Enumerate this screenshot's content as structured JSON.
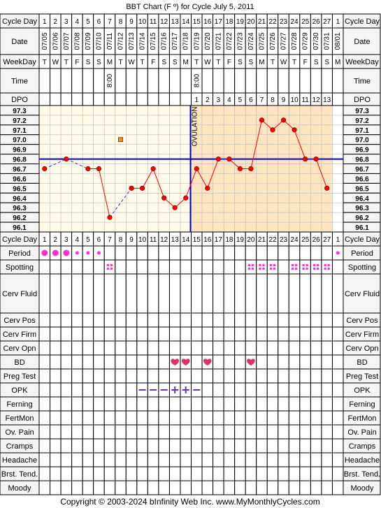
{
  "title": "BBT Chart (F º) for Cycle July 5, 2011",
  "footer": "Copyright © 2003-2024 bInfinity Web Inc.    www.MyMonthlyCycles.com",
  "labels": {
    "cycle_day": "Cycle Day",
    "date": "Date",
    "weekday": "WeekDay",
    "time": "Time",
    "dpo": "DPO",
    "ovulation": "OVULATION"
  },
  "colors": {
    "grid": "#000000",
    "pre_ovulation_bg": "#fffbe8",
    "post_ovulation_bg": "#fde5c0",
    "label_bg": "#f5f5f5",
    "temp_line": "#ff0000",
    "temp_point": "#ff0000",
    "coverline": "#0000cc",
    "ovulation_line": "#0000cc",
    "gap_line": "#3333cc",
    "outlier_point": "#ff8c00",
    "pink": "#ff33cc",
    "heart": "#dd3366",
    "opk": "#6633cc"
  },
  "columns": {
    "cycle_days": [
      "1",
      "2",
      "3",
      "4",
      "5",
      "6",
      "7",
      "8",
      "9",
      "10",
      "11",
      "12",
      "13",
      "14",
      "15",
      "16",
      "17",
      "18",
      "19",
      "20",
      "21",
      "22",
      "23",
      "24",
      "25",
      "26",
      "27",
      "1"
    ],
    "dates": [
      "07/05",
      "07/06",
      "07/07",
      "07/08",
      "07/09",
      "07/10",
      "07/11",
      "07/12",
      "07/13",
      "07/14",
      "07/15",
      "07/16",
      "07/17",
      "07/18",
      "07/19",
      "07/20",
      "07/21",
      "07/22",
      "07/23",
      "07/24",
      "07/25",
      "07/26",
      "07/27",
      "07/28",
      "07/29",
      "07/30",
      "07/31",
      "08/01"
    ],
    "weekdays": [
      "T",
      "W",
      "T",
      "F",
      "S",
      "S",
      "M",
      "T",
      "W",
      "T",
      "F",
      "S",
      "S",
      "M",
      "T",
      "W",
      "T",
      "F",
      "S",
      "S",
      "M",
      "T",
      "W",
      "T",
      "F",
      "S",
      "S",
      "M"
    ],
    "times": [
      "",
      "",
      "",
      "",
      "",
      "",
      "8:00",
      "",
      "",
      "",
      "",
      "",
      "",
      "",
      "8:00",
      "",
      "",
      "",
      "",
      "",
      "",
      "",
      "",
      "",
      "",
      "",
      "",
      ""
    ],
    "dpo": [
      "",
      "",
      "",
      "",
      "",
      "",
      "",
      "",
      "",
      "",
      "",
      "",
      "",
      "",
      "1",
      "2",
      "3",
      "4",
      "5",
      "6",
      "7",
      "8",
      "9",
      "10",
      "11",
      "12",
      "13",
      ""
    ]
  },
  "chart_data": {
    "type": "line",
    "title": "BBT Chart (F º) for Cycle July 5, 2011",
    "x": [
      "07/05",
      "07/06",
      "07/07",
      "07/08",
      "07/09",
      "07/10",
      "07/11",
      "07/12",
      "07/13",
      "07/14",
      "07/15",
      "07/16",
      "07/17",
      "07/18",
      "07/19",
      "07/20",
      "07/21",
      "07/22",
      "07/23",
      "07/24",
      "07/25",
      "07/26",
      "07/27",
      "07/28",
      "07/29",
      "07/30",
      "07/31",
      "08/01"
    ],
    "series": [
      {
        "values": [
          96.7,
          null,
          96.8,
          null,
          96.7,
          96.7,
          96.2,
          null,
          96.5,
          96.5,
          96.7,
          96.4,
          96.3,
          96.4,
          96.7,
          96.5,
          96.8,
          96.8,
          96.7,
          96.7,
          97.2,
          97.1,
          97.2,
          97.1,
          96.8,
          96.8,
          96.5,
          null
        ]
      }
    ],
    "discarded_points": [
      {
        "x": "07/12",
        "y": 97.0
      }
    ],
    "coverline": 96.8,
    "ovulation_day": 14,
    "y_ticks": [
      "97.3",
      "97.2",
      "97.1",
      "97.0",
      "96.9",
      "96.8",
      "96.7",
      "96.6",
      "96.5",
      "96.4",
      "96.3",
      "96.2",
      "96.1"
    ],
    "ylim": [
      96.1,
      97.3
    ],
    "grid": true
  },
  "symptom_rows": [
    {
      "label": "Period",
      "marks": [
        {
          "day": 1,
          "type": "dot-large"
        },
        {
          "day": 2,
          "type": "dot-large"
        },
        {
          "day": 3,
          "type": "dot-large"
        },
        {
          "day": 4,
          "type": "dot-small"
        },
        {
          "day": 5,
          "type": "dot-small"
        },
        {
          "day": 6,
          "type": "dot-small"
        },
        {
          "day": 28,
          "type": "dot-small"
        }
      ]
    },
    {
      "label": "Spotting",
      "marks": [
        {
          "day": 7,
          "type": "quad"
        },
        {
          "day": 20,
          "type": "quad"
        },
        {
          "day": 21,
          "type": "quad"
        },
        {
          "day": 22,
          "type": "quad"
        },
        {
          "day": 24,
          "type": "quad"
        },
        {
          "day": 25,
          "type": "quad"
        },
        {
          "day": 26,
          "type": "quad"
        },
        {
          "day": 27,
          "type": "quad"
        }
      ]
    },
    {
      "label": "Cerv Fluid",
      "tall": true,
      "marks": []
    },
    {
      "label": "Cerv Pos",
      "marks": []
    },
    {
      "label": "Cerv Firm",
      "marks": []
    },
    {
      "label": "Cerv Opn",
      "marks": []
    },
    {
      "label": "BD",
      "marks": [
        {
          "day": 13,
          "type": "heart"
        },
        {
          "day": 14,
          "type": "heart"
        },
        {
          "day": 16,
          "type": "heart"
        },
        {
          "day": 20,
          "type": "heart"
        }
      ]
    },
    {
      "label": "Preg Test",
      "marks": []
    },
    {
      "label": "OPK",
      "marks": [
        {
          "day": 10,
          "type": "minus"
        },
        {
          "day": 11,
          "type": "minus"
        },
        {
          "day": 12,
          "type": "minus"
        },
        {
          "day": 13,
          "type": "plus"
        },
        {
          "day": 14,
          "type": "plus"
        },
        {
          "day": 15,
          "type": "minus"
        }
      ]
    },
    {
      "label": "Ferning",
      "marks": []
    },
    {
      "label": "FertMon",
      "marks": []
    },
    {
      "label": "Ov. Pain",
      "marks": []
    },
    {
      "label": "Cramps",
      "marks": []
    },
    {
      "label": "Headache",
      "marks": []
    },
    {
      "label": "Brst. Tend.",
      "marks": []
    },
    {
      "label": "Moody",
      "marks": []
    }
  ]
}
